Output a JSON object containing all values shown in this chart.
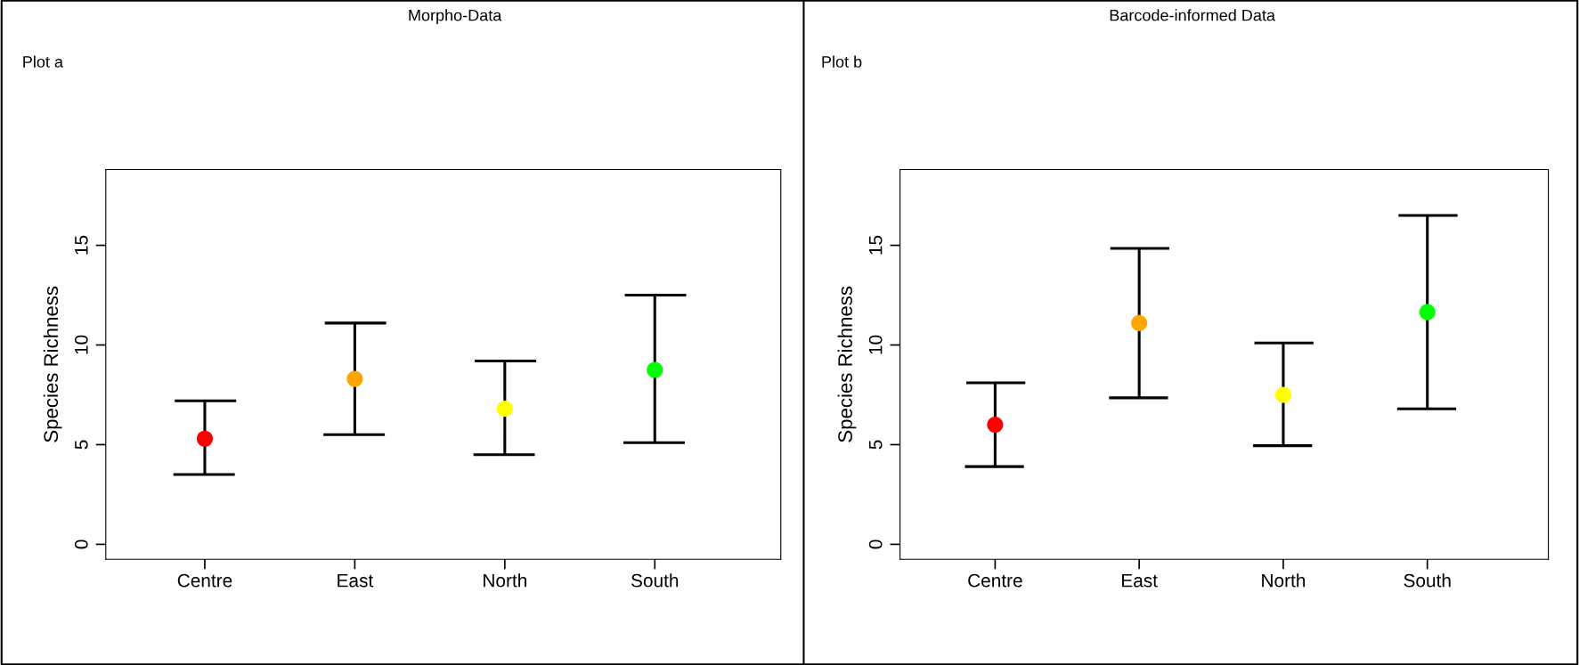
{
  "chart_data": [
    {
      "type": "scatter",
      "title": "Morpho-Data",
      "subtitle": "Plot a",
      "ylabel": "Species Richness",
      "categories": [
        "Centre",
        "East",
        "North",
        "South"
      ],
      "values": [
        5.3,
        8.3,
        6.8,
        8.75
      ],
      "errors": [
        [
          3.5,
          7.2
        ],
        [
          5.5,
          11.1
        ],
        [
          4.5,
          9.2
        ],
        [
          5.1,
          12.5
        ]
      ],
      "colors": [
        "#ff0000",
        "#ffa500",
        "#ffff00",
        "#00ff00"
      ],
      "ylim": [
        -0.75,
        18.8
      ],
      "yticks": [
        0,
        5,
        10,
        15
      ],
      "marker": "circle",
      "grid": false,
      "legend": false
    },
    {
      "type": "scatter",
      "title": "Barcode-informed Data",
      "subtitle": "Plot b",
      "ylabel": "Species Richness",
      "categories": [
        "Centre",
        "East",
        "North",
        "South"
      ],
      "values": [
        6.0,
        11.1,
        7.5,
        11.65
      ],
      "errors": [
        [
          3.9,
          8.1
        ],
        [
          7.35,
          14.85
        ],
        [
          4.95,
          10.1
        ],
        [
          6.8,
          16.5
        ]
      ],
      "colors": [
        "#ff0000",
        "#ffa500",
        "#ffff00",
        "#00ff00"
      ],
      "ylim": [
        -0.75,
        18.8
      ],
      "yticks": [
        0,
        5,
        10,
        15
      ],
      "marker": "circle",
      "grid": false,
      "legend": false
    }
  ]
}
